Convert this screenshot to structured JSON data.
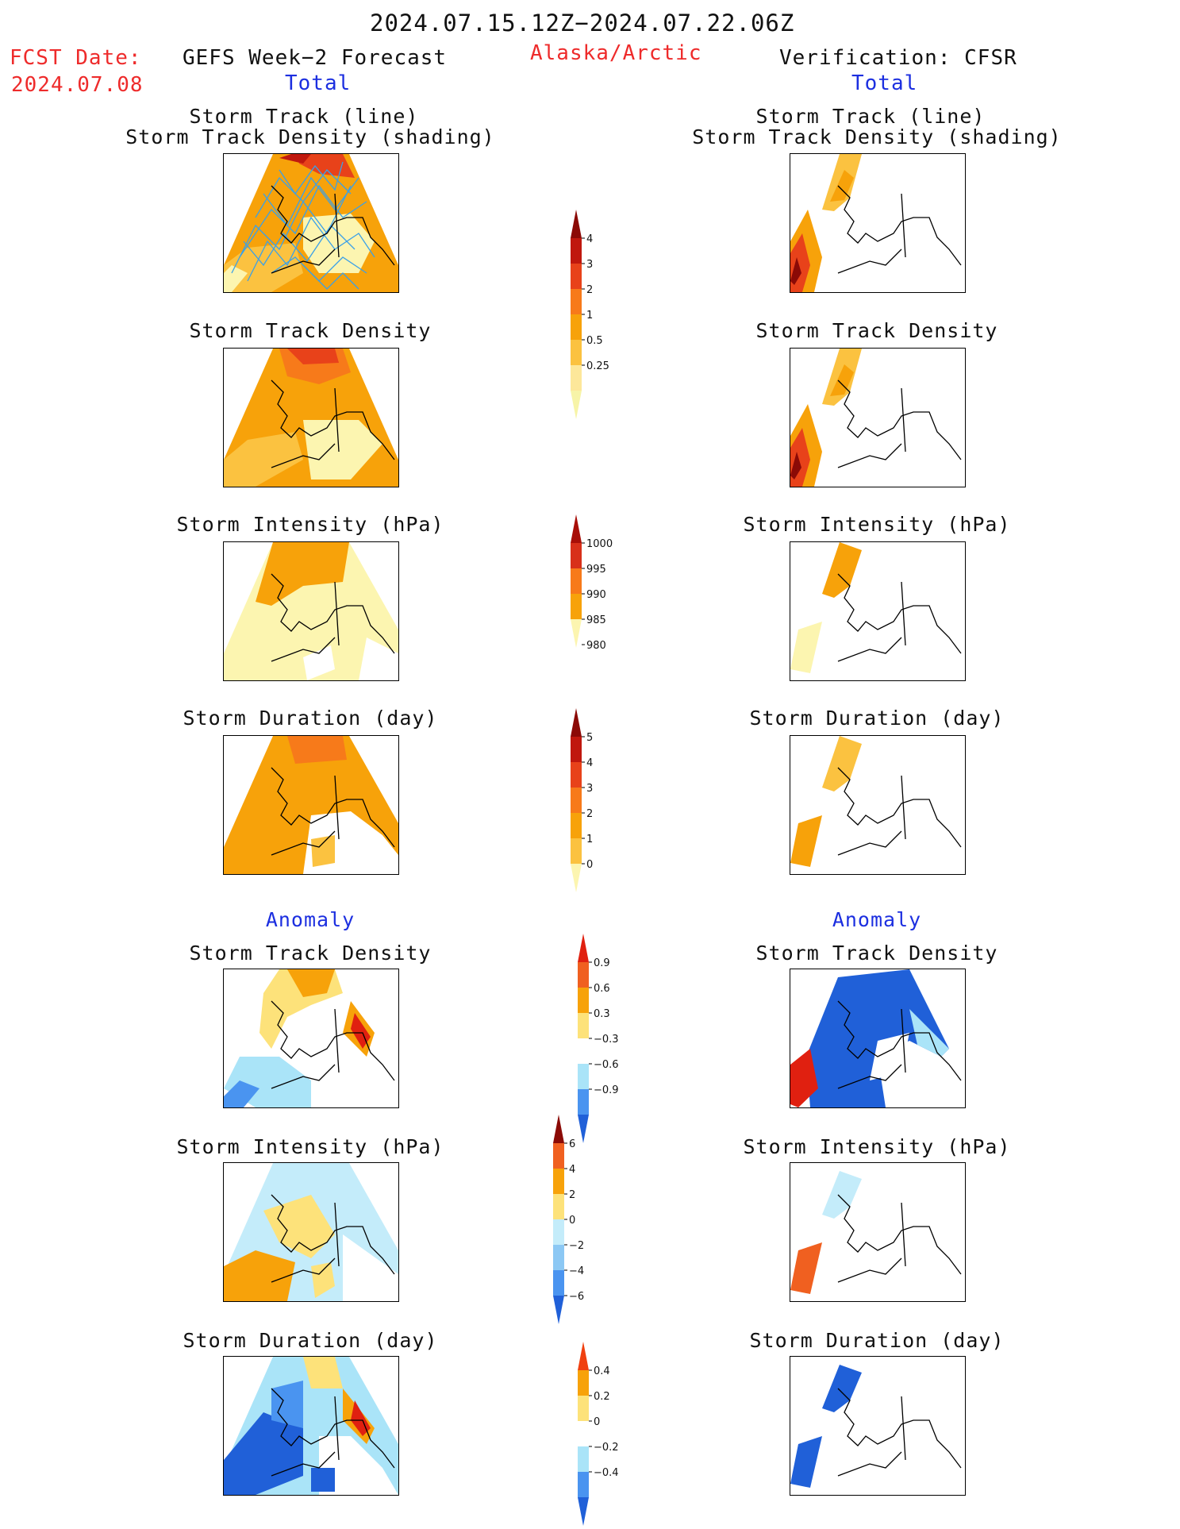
{
  "header": {
    "date_range": "2024.07.15.12Z−2024.07.22.06Z",
    "fcst_label": "FCST Date:",
    "fcst_date": "2024.07.08",
    "left_title": "GEFS Week−2 Forecast",
    "region": "Alaska/Arctic",
    "right_title": "Verification: CFSR",
    "left_total": "Total",
    "right_total": "Total",
    "left_anomaly": "Anomaly",
    "right_anomaly": "Anomaly"
  },
  "panel_titles": {
    "track_line": "Storm Track (line)",
    "track_shading": "Storm Track Density (shading)",
    "density": "Storm Track Density",
    "intensity": "Storm Intensity (hPa)",
    "duration": "Storm Duration (day)"
  },
  "colorbars": {
    "density": {
      "labels": [
        "4",
        "3",
        "2",
        "1",
        "0.5",
        "0.25"
      ],
      "colors": [
        "#f7f4a8",
        "#fde79a",
        "#fbc240",
        "#f7a20a",
        "#f77a1a",
        "#e8421a",
        "#c0180e",
        "#8b0a06"
      ]
    },
    "intensity": {
      "labels": [
        "1000",
        "995",
        "990",
        "985",
        "980"
      ],
      "colors": [
        "#fcf5b0",
        "#f7a20a",
        "#f77a1a",
        "#d8301a",
        "#a80e08"
      ]
    },
    "duration": {
      "labels": [
        "5",
        "4",
        "3",
        "2",
        "1",
        "0"
      ],
      "colors": [
        "#fcf5b0",
        "#fbc240",
        "#f7a20a",
        "#f77a1a",
        "#e8421a",
        "#c0180e",
        "#8b0a06"
      ]
    },
    "density_anom": {
      "labels": [
        "0.9",
        "0.6",
        "0.3",
        "−0.3",
        "−0.6",
        "−0.9"
      ],
      "colors": [
        "#2060d8",
        "#4a94f0",
        "#aae4f8",
        "#ffffff",
        "#fde27a",
        "#f7a20a",
        "#f06020",
        "#e02010"
      ]
    },
    "intensity_anom": {
      "labels": [
        "6",
        "4",
        "2",
        "0",
        "−2",
        "−4",
        "−6"
      ],
      "colors": [
        "#2060d8",
        "#4a94f0",
        "#8cc8f4",
        "#c4ecfa",
        "#fde27a",
        "#f7a20a",
        "#f06020",
        "#8b0a06"
      ]
    },
    "duration_anom": {
      "labels": [
        "0.4",
        "0.2",
        "0",
        "−0.2",
        "−0.4"
      ],
      "colors": [
        "#2060d8",
        "#4a94f0",
        "#aae4f8",
        "#ffffff",
        "#fde27a",
        "#f7a20a",
        "#f04010"
      ]
    }
  },
  "colors": {
    "red": "#ee2b2b",
    "blue": "#1c2fe0",
    "track": "#3aa0e8"
  }
}
